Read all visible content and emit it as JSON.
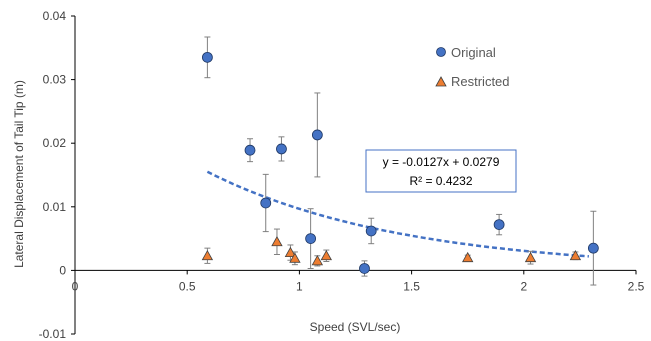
{
  "chart_data": {
    "type": "scatter",
    "title": "",
    "xlabel": "Speed (SVL/sec)",
    "ylabel": "Lateral Displacement of Tail Tip (m)",
    "xlim": [
      0,
      2.5
    ],
    "ylim": [
      -0.01,
      0.04
    ],
    "x_ticks": [
      0,
      0.5,
      1,
      1.5,
      2,
      2.5
    ],
    "x_tick_labels": [
      "0",
      "0.5",
      "1",
      "1.5",
      "2",
      "2.5"
    ],
    "y_ticks": [
      -0.01,
      0,
      0.01,
      0.02,
      0.03,
      0.04
    ],
    "y_tick_labels": [
      "-0.01",
      "0",
      "0.01",
      "0.02",
      "0.03",
      "0.04"
    ],
    "grid": false,
    "legend_position": "top-right",
    "series": [
      {
        "name": "Original",
        "marker": "circle",
        "color": "#4472c4",
        "points": [
          {
            "x": 0.59,
            "y": 0.0335,
            "err": 0.0032
          },
          {
            "x": 0.78,
            "y": 0.0189,
            "err": 0.0018
          },
          {
            "x": 0.85,
            "y": 0.0106,
            "err": 0.0045
          },
          {
            "x": 0.92,
            "y": 0.0191,
            "err": 0.0019
          },
          {
            "x": 1.08,
            "y": 0.0213,
            "err": 0.0066
          },
          {
            "x": 1.05,
            "y": 0.005,
            "err": 0.0047
          },
          {
            "x": 1.29,
            "y": 0.0003,
            "err": 0.0012
          },
          {
            "x": 1.32,
            "y": 0.0062,
            "err": 0.002
          },
          {
            "x": 1.89,
            "y": 0.0072,
            "err": 0.0016
          },
          {
            "x": 2.31,
            "y": 0.0035,
            "err": 0.0058
          }
        ]
      },
      {
        "name": "Restricted",
        "marker": "triangle",
        "color": "#ed7d31",
        "points": [
          {
            "x": 0.59,
            "y": 0.0023,
            "err": 0.0012
          },
          {
            "x": 0.9,
            "y": 0.0045,
            "err": 0.002
          },
          {
            "x": 0.96,
            "y": 0.0028,
            "err": 0.0012
          },
          {
            "x": 0.98,
            "y": 0.0019,
            "err": 0.001
          },
          {
            "x": 1.08,
            "y": 0.0015,
            "err": 0.0008
          },
          {
            "x": 1.12,
            "y": 0.0023,
            "err": 0.0009
          },
          {
            "x": 1.75,
            "y": 0.002,
            "err": 0.0004
          },
          {
            "x": 2.03,
            "y": 0.002,
            "err": 0.001
          },
          {
            "x": 2.23,
            "y": 0.0023,
            "err": 0.0006
          }
        ]
      }
    ],
    "trendline": {
      "type": "exponential",
      "color": "#4472c4",
      "style": "dashed",
      "x_range": [
        0.59,
        2.29
      ],
      "equation": "y = -0.0127x + 0.0279",
      "r_squared": "R² = 0.4232"
    }
  }
}
